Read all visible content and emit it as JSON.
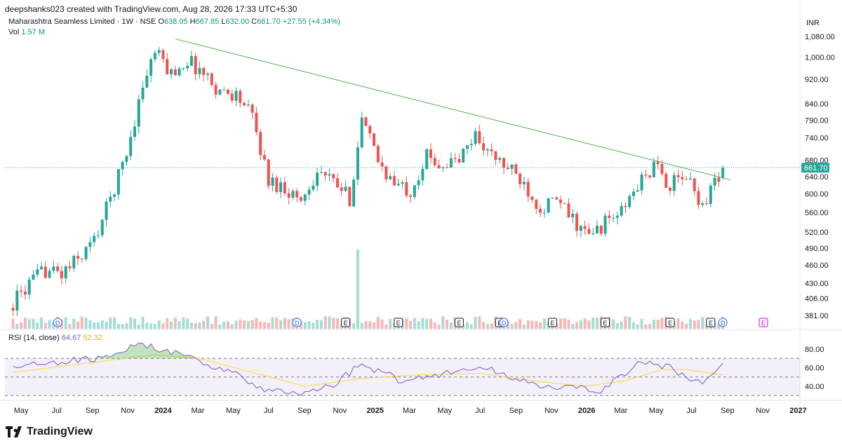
{
  "header": {
    "credit": "deepshanks023 created with TradingView.com, Aug 28, 2026 17:33 UTC+5:30"
  },
  "legend": {
    "symbol": "Maharashtra Seamless Limited · 1W · NSE",
    "o_label": "O",
    "o_value": "638.05",
    "h_label": "H",
    "h_value": "667.85",
    "l_label": "L",
    "l_value": "632.00",
    "c_label": "C",
    "c_value": "661.70",
    "change": "+27.55 (+4.34%)",
    "vol_label": "Vol",
    "vol_value": "1.57 M"
  },
  "rsi_legend": {
    "label": "RSI (14, close)",
    "rsi_value": "64.67",
    "ma_value": "52.32"
  },
  "brand": {
    "name": "TradingView"
  },
  "colors": {
    "up": "#26a69a",
    "down": "#ef5350",
    "trendline": "#4caf50",
    "rsi": "#7e57c2",
    "rsi_ma": "#fdd835",
    "price_tag": "#26a69a"
  },
  "chart_data": {
    "type": "candlestick",
    "currency_label": "INR",
    "last_price_label": "661.70",
    "price_axis_scale": "log",
    "price_ticks": [
      "1,080.00",
      "1,000.00",
      "920.00",
      "840.00",
      "790.00",
      "740.00",
      "680.00",
      "640.00",
      "600.00",
      "560.00",
      "520.00",
      "490.00",
      "460.00",
      "430.00",
      "406.00",
      "381.00"
    ],
    "time_axis_labels": [
      "May",
      "Jul",
      "Sep",
      "Nov",
      "2024",
      "Mar",
      "May",
      "Jul",
      "Sep",
      "Nov",
      "2025",
      "Mar",
      "May",
      "Jul",
      "Sep",
      "Nov",
      "2026",
      "Mar",
      "May",
      "Jul",
      "Sep",
      "Nov",
      "2027"
    ],
    "time_axis_bold": [
      "2024",
      "2025",
      "2026",
      "2027"
    ],
    "ohlc_anchors": [
      {
        "d": "2023-04-17",
        "c": 400
      },
      {
        "d": "2023-05-15",
        "c": 428
      },
      {
        "d": "2023-06-12",
        "c": 452
      },
      {
        "d": "2023-07-10",
        "c": 445
      },
      {
        "d": "2023-08-07",
        "c": 470
      },
      {
        "d": "2023-09-04",
        "c": 505
      },
      {
        "d": "2023-10-02",
        "c": 590
      },
      {
        "d": "2023-10-30",
        "c": 700
      },
      {
        "d": "2023-11-27",
        "c": 900
      },
      {
        "d": "2023-12-18",
        "c": 1020
      },
      {
        "d": "2024-01-15",
        "c": 940
      },
      {
        "d": "2024-02-12",
        "c": 990
      },
      {
        "d": "2024-03-11",
        "c": 940
      },
      {
        "d": "2024-04-08",
        "c": 880
      },
      {
        "d": "2024-05-06",
        "c": 870
      },
      {
        "d": "2024-06-03",
        "c": 800
      },
      {
        "d": "2024-07-01",
        "c": 630
      },
      {
        "d": "2024-07-29",
        "c": 615
      },
      {
        "d": "2024-08-26",
        "c": 585
      },
      {
        "d": "2024-09-23",
        "c": 655
      },
      {
        "d": "2024-10-21",
        "c": 625
      },
      {
        "d": "2024-11-18",
        "c": 590
      },
      {
        "d": "2024-12-09",
        "c": 790
      },
      {
        "d": "2025-01-06",
        "c": 680
      },
      {
        "d": "2025-02-03",
        "c": 620
      },
      {
        "d": "2025-03-03",
        "c": 610
      },
      {
        "d": "2025-03-31",
        "c": 690
      },
      {
        "d": "2025-04-28",
        "c": 670
      },
      {
        "d": "2025-05-26",
        "c": 680
      },
      {
        "d": "2025-06-23",
        "c": 750
      },
      {
        "d": "2025-07-21",
        "c": 690
      },
      {
        "d": "2025-08-18",
        "c": 660
      },
      {
        "d": "2025-09-15",
        "c": 625
      },
      {
        "d": "2025-10-13",
        "c": 570
      },
      {
        "d": "2025-11-10",
        "c": 585
      },
      {
        "d": "2025-12-08",
        "c": 545
      },
      {
        "d": "2026-01-05",
        "c": 510
      },
      {
        "d": "2026-02-02",
        "c": 540
      },
      {
        "d": "2026-03-02",
        "c": 560
      },
      {
        "d": "2026-03-30",
        "c": 620
      },
      {
        "d": "2026-04-27",
        "c": 665
      },
      {
        "d": "2026-05-25",
        "c": 620
      },
      {
        "d": "2026-06-22",
        "c": 640
      },
      {
        "d": "2026-07-20",
        "c": 575
      },
      {
        "d": "2026-08-10",
        "c": 630
      },
      {
        "d": "2026-08-24",
        "c": 661.7
      }
    ],
    "last_bar": {
      "date": "2026-08-24",
      "open": 638.05,
      "high": 667.85,
      "low": 632.0,
      "close": 661.7,
      "volume": "1.57 M"
    },
    "trendline": {
      "from": {
        "d": "2024-01-22",
        "price": 1070
      },
      "to": {
        "d": "2026-09-07",
        "price": 632
      }
    },
    "volume_spike": {
      "d": "2024-12-02"
    },
    "events": [
      {
        "d": "2023-07-03",
        "t": "D",
        "kind": "dividend"
      },
      {
        "d": "2024-08-19",
        "t": "D",
        "kind": "dividend"
      },
      {
        "d": "2024-11-11",
        "t": "E",
        "kind": "earnings"
      },
      {
        "d": "2025-02-10",
        "t": "E",
        "kind": "earnings"
      },
      {
        "d": "2025-05-26",
        "t": "E",
        "kind": "earnings"
      },
      {
        "d": "2025-08-04",
        "t": "E",
        "kind": "earnings"
      },
      {
        "d": "2025-08-11",
        "t": "D",
        "kind": "dividend"
      },
      {
        "d": "2025-11-03",
        "t": "E",
        "kind": "earnings"
      },
      {
        "d": "2026-02-02",
        "t": "E",
        "kind": "earnings"
      },
      {
        "d": "2026-05-25",
        "t": "E",
        "kind": "earnings"
      },
      {
        "d": "2026-08-03",
        "t": "E",
        "kind": "earnings"
      },
      {
        "d": "2026-08-24",
        "t": "D",
        "kind": "dividend"
      },
      {
        "d": "2026-11-02",
        "t": "E",
        "kind": "earnings-upcoming"
      }
    ],
    "rsi": {
      "ticks": [
        "80.00",
        "60.00",
        "40.00"
      ],
      "upper_band": 70,
      "lower_band": 30,
      "mid": 50,
      "anchors": [
        {
          "d": "2023-04-17",
          "v": 60
        },
        {
          "d": "2023-07-10",
          "v": 66
        },
        {
          "d": "2023-09-04",
          "v": 70
        },
        {
          "d": "2023-11-27",
          "v": 85
        },
        {
          "d": "2024-01-08",
          "v": 78
        },
        {
          "d": "2024-03-04",
          "v": 66
        },
        {
          "d": "2024-05-06",
          "v": 55
        },
        {
          "d": "2024-06-17",
          "v": 36
        },
        {
          "d": "2024-08-26",
          "v": 32
        },
        {
          "d": "2024-10-21",
          "v": 42
        },
        {
          "d": "2024-12-09",
          "v": 64
        },
        {
          "d": "2025-02-17",
          "v": 46
        },
        {
          "d": "2025-05-19",
          "v": 56
        },
        {
          "d": "2025-07-07",
          "v": 60
        },
        {
          "d": "2025-09-15",
          "v": 46
        },
        {
          "d": "2025-11-10",
          "v": 38
        },
        {
          "d": "2026-01-26",
          "v": 36
        },
        {
          "d": "2026-04-06",
          "v": 66
        },
        {
          "d": "2026-05-25",
          "v": 60
        },
        {
          "d": "2026-07-20",
          "v": 42
        },
        {
          "d": "2026-08-24",
          "v": 64.67
        }
      ],
      "ma_anchors": [
        {
          "d": "2023-04-17",
          "v": 55
        },
        {
          "d": "2023-10-02",
          "v": 68
        },
        {
          "d": "2023-12-18",
          "v": 74
        },
        {
          "d": "2024-03-04",
          "v": 70
        },
        {
          "d": "2024-06-03",
          "v": 55
        },
        {
          "d": "2024-09-02",
          "v": 40
        },
        {
          "d": "2024-12-02",
          "v": 48
        },
        {
          "d": "2025-03-03",
          "v": 52
        },
        {
          "d": "2025-06-30",
          "v": 54
        },
        {
          "d": "2025-09-29",
          "v": 46
        },
        {
          "d": "2025-12-29",
          "v": 40
        },
        {
          "d": "2026-03-09",
          "v": 46
        },
        {
          "d": "2026-05-11",
          "v": 58
        },
        {
          "d": "2026-06-22",
          "v": 58
        },
        {
          "d": "2026-08-24",
          "v": 52.32
        }
      ]
    }
  }
}
